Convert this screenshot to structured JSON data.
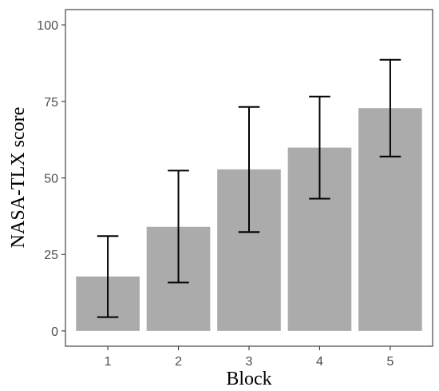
{
  "chart_data": {
    "type": "bar",
    "xlabel": "Block",
    "ylabel": "NASA-TLX score",
    "categories": [
      "1",
      "2",
      "3",
      "4",
      "5"
    ],
    "values": [
      17.8,
      34.0,
      52.8,
      59.9,
      72.8
    ],
    "error_low": [
      4.5,
      15.8,
      32.3,
      43.2,
      57.0
    ],
    "error_high": [
      31.0,
      52.4,
      73.2,
      76.6,
      88.6
    ],
    "ylim": [
      0,
      100
    ],
    "yticks": [
      "0",
      "25",
      "50",
      "75",
      "100"
    ],
    "ytick_values": [
      0,
      25,
      50,
      75,
      100
    ],
    "grid": false,
    "bar_color": "#ababab",
    "errorbar_color": "#000000",
    "panel_border_color": "#333333"
  }
}
